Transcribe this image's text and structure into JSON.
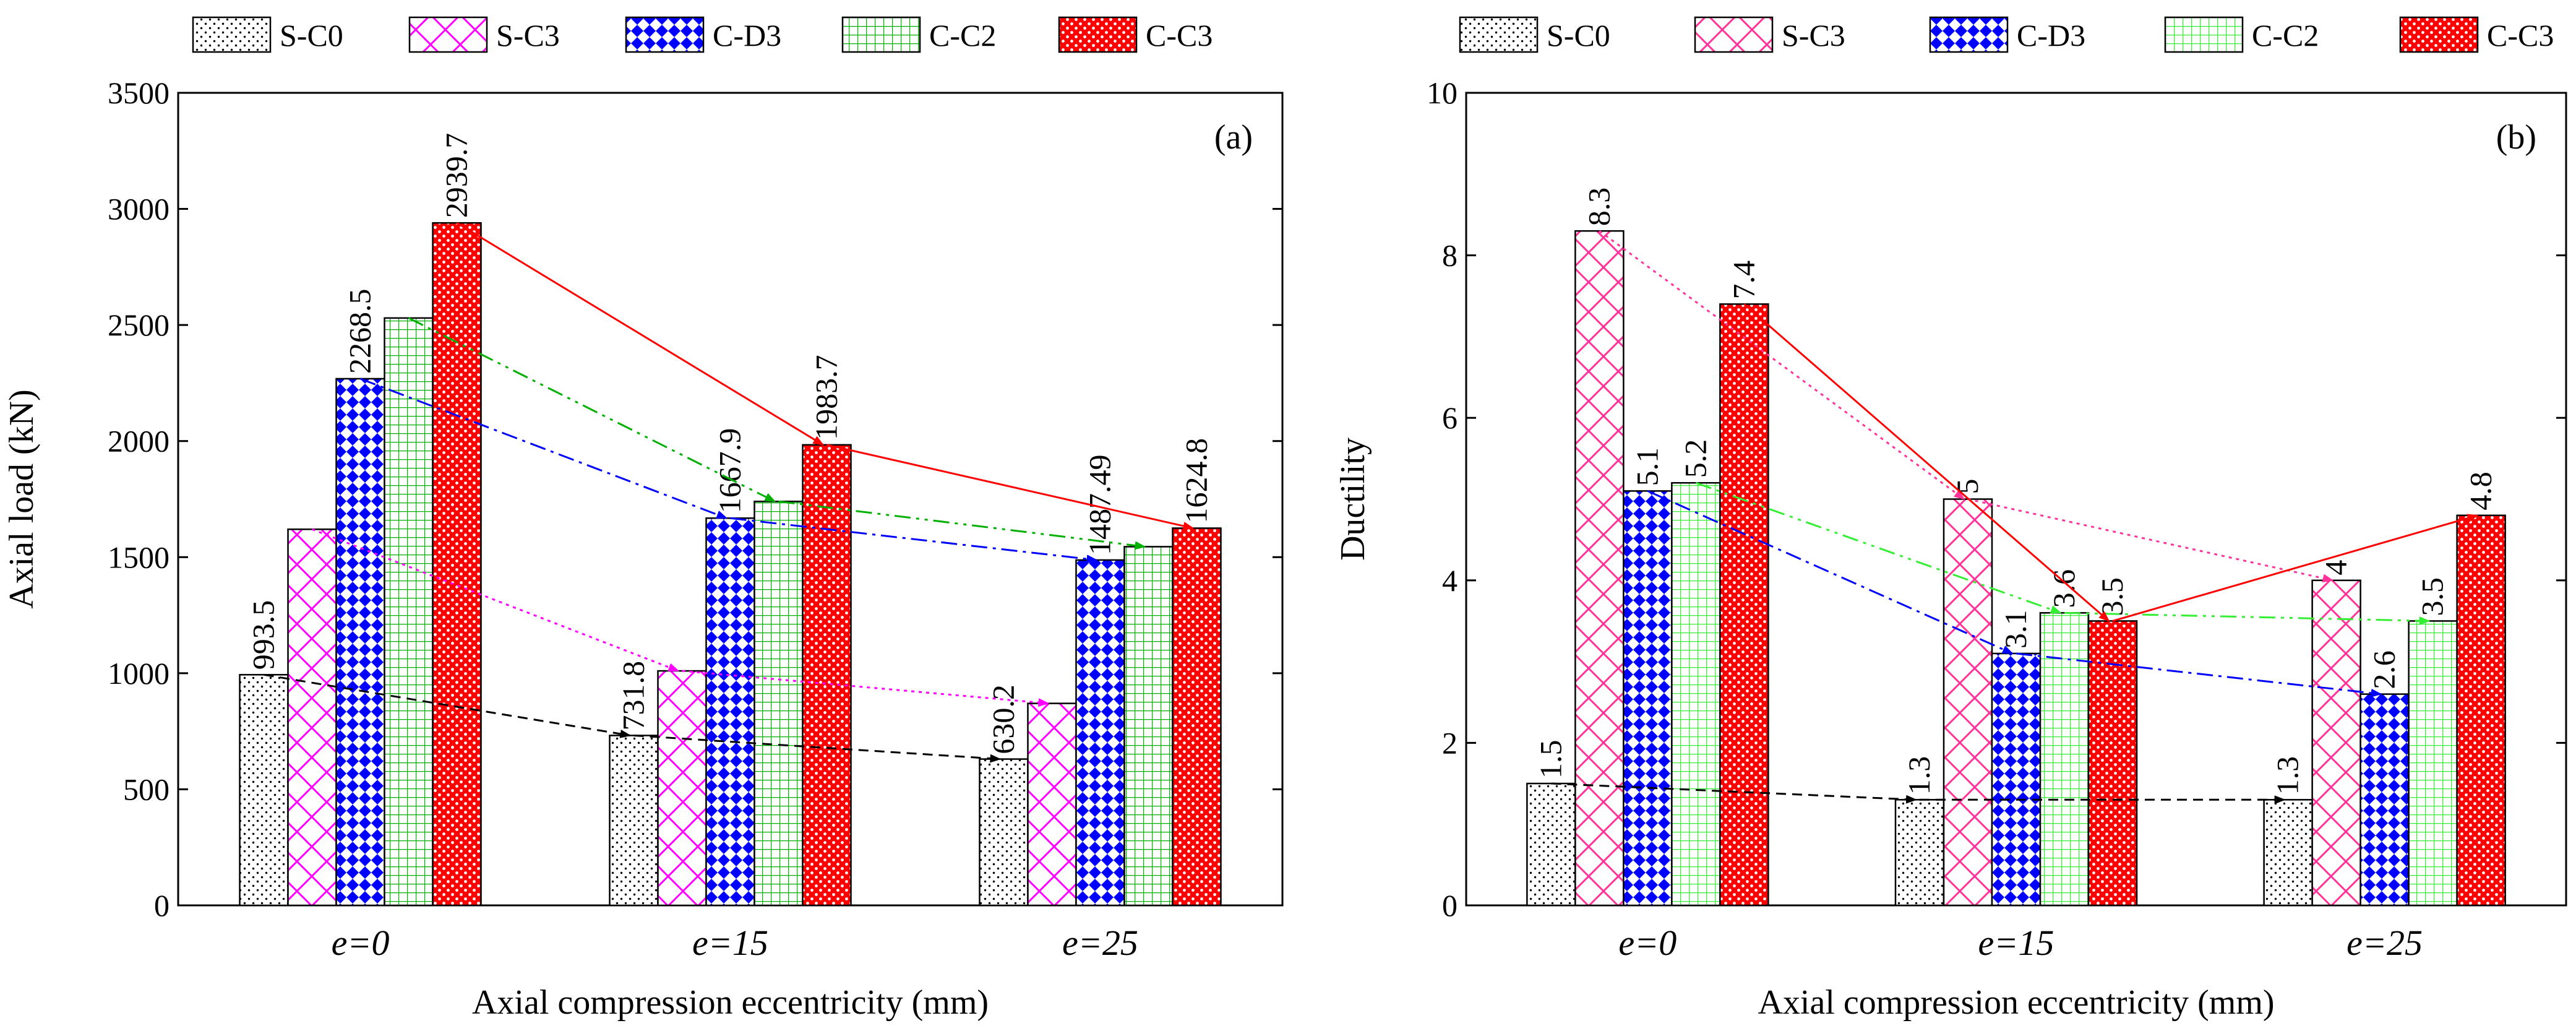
{
  "chart_data": [
    {
      "type": "bar",
      "panel_label": "(a)",
      "xlabel": "Axial compression eccentricity (mm)",
      "ylabel": "Axial load (kN)",
      "ylim": [
        0,
        3500
      ],
      "yticks": [
        0,
        500,
        1000,
        1500,
        2000,
        2500,
        3000,
        3500
      ],
      "categories": [
        "e=0",
        "e=15",
        "e=25"
      ],
      "series": [
        {
          "name": "S-C0",
          "values": [
            993.5,
            731.8,
            630.2
          ],
          "labels": [
            "993.5",
            "731.8",
            "630.2"
          ]
        },
        {
          "name": "S-C3",
          "values": [
            1620,
            1010,
            870
          ],
          "labels": [
            "",
            "",
            ""
          ]
        },
        {
          "name": "C-D3",
          "values": [
            2268.5,
            1667.9,
            1487.49
          ],
          "labels": [
            "2268.5",
            "1667.9",
            "1487.49"
          ]
        },
        {
          "name": "C-C2",
          "values": [
            2530,
            1740,
            1545
          ],
          "labels": [
            "",
            "",
            ""
          ]
        },
        {
          "name": "C-C3",
          "values": [
            2939.7,
            1983.7,
            1624.8
          ],
          "labels": [
            "2939.7",
            "1983.7",
            "1624.8"
          ]
        }
      ],
      "legend": "top"
    },
    {
      "type": "bar",
      "panel_label": "(b)",
      "xlabel": "Axial compression eccentricity (mm)",
      "ylabel": "Ductility",
      "ylim": [
        0,
        10
      ],
      "yticks": [
        0,
        2,
        4,
        6,
        8,
        10
      ],
      "categories": [
        "e=0",
        "e=15",
        "e=25"
      ],
      "series": [
        {
          "name": "S-C0",
          "values": [
            1.5,
            1.3,
            1.3
          ],
          "labels": [
            "1.5",
            "1.3",
            "1.3"
          ]
        },
        {
          "name": "S-C3",
          "values": [
            8.3,
            5,
            4
          ],
          "labels": [
            "8.3",
            "5",
            "4"
          ]
        },
        {
          "name": "C-D3",
          "values": [
            5.1,
            3.1,
            2.6
          ],
          "labels": [
            "5.1",
            "3.1",
            "2.6"
          ]
        },
        {
          "name": "C-C2",
          "values": [
            5.2,
            3.6,
            3.5
          ],
          "labels": [
            "5.2",
            "3.6",
            "3.5"
          ]
        },
        {
          "name": "C-C3",
          "values": [
            7.4,
            3.5,
            4.8
          ],
          "labels": [
            "7.4",
            "3.5",
            "4.8"
          ]
        }
      ],
      "legend": "top"
    }
  ],
  "series_colors": {
    "S-C0": "#000000",
    "S-C3": "#ff00ff",
    "C-D3": "#0000ff",
    "C-C2": "#00b000",
    "C-C3": "#ff0000"
  },
  "panel_b_colors": {
    "S-C0": "#000000",
    "S-C3": "#ff3399",
    "C-D3": "#0000ff",
    "C-C2": "#33ee33",
    "C-C3": "#ff0000"
  }
}
